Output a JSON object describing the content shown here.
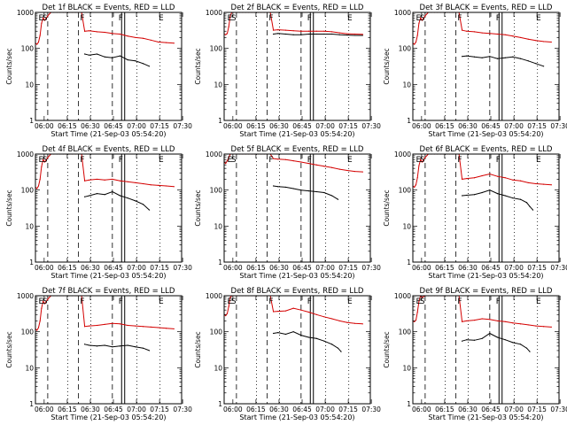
{
  "colors": {
    "events": "#000000",
    "lld": "#d40000",
    "axis": "#000000",
    "background": "#ffffff"
  },
  "shared": {
    "ylabel": "Counts/sec",
    "xlabel": "Start Time (21-Sep-03 05:54:20)",
    "x_ticks": [
      "06:00",
      "06:15",
      "06:30",
      "06:45",
      "07:00",
      "07:15",
      "07:30"
    ],
    "y_ticks": [
      "1",
      "10",
      "100",
      "1000"
    ],
    "markers": [
      "E",
      "S",
      "F",
      "F",
      "E"
    ]
  },
  "chart_data": [
    {
      "type": "line",
      "title": "Det 1f BLACK = Events, RED = LLD",
      "xlabel": "Start Time (21-Sep-03 05:54:20)",
      "ylabel": "Counts/sec",
      "xlim_min": [
        0,
        95
      ],
      "ylim": [
        1,
        1000
      ],
      "yscale": "log",
      "series": [
        {
          "name": "Events",
          "x": [
            32,
            35,
            40,
            45,
            50,
            55,
            60,
            65,
            70,
            74
          ],
          "y": [
            70,
            65,
            70,
            58,
            55,
            62,
            48,
            45,
            38,
            32
          ]
        },
        {
          "name": "LLD",
          "x": [
            0,
            1,
            2,
            3,
            4,
            5,
            6,
            8,
            10,
            12,
            14,
            16,
            18,
            20,
            22,
            24,
            26,
            28,
            30,
            32,
            35,
            40,
            45,
            50,
            55,
            60,
            65,
            70,
            75,
            80,
            85,
            90
          ],
          "y": [
            140,
            130,
            150,
            230,
            500,
            700,
            600,
            800,
            1000,
            1000,
            1000,
            1000,
            1000,
            1000,
            1000,
            1000,
            1000,
            1000,
            1000,
            300,
            310,
            290,
            280,
            260,
            250,
            220,
            200,
            190,
            170,
            150,
            145,
            140
          ]
        }
      ]
    },
    {
      "type": "line",
      "title": "Det 2f BLACK = Events, RED = LLD",
      "xlabel": "Start Time (21-Sep-03 05:54:20)",
      "ylabel": "Counts/sec",
      "xlim_min": [
        0,
        95
      ],
      "ylim": [
        1,
        1000
      ],
      "yscale": "log",
      "series": [
        {
          "name": "Events",
          "x": [
            32,
            35,
            40,
            45,
            50,
            55,
            60,
            65,
            70,
            75,
            80,
            85,
            90
          ],
          "y": [
            250,
            260,
            250,
            240,
            240,
            250,
            250,
            250,
            250,
            240,
            235,
            230,
            230
          ]
        },
        {
          "name": "LLD",
          "x": [
            0,
            1,
            2,
            3,
            4,
            5,
            6,
            8,
            10,
            12,
            14,
            16,
            18,
            20,
            22,
            24,
            26,
            28,
            30,
            32,
            35,
            40,
            45,
            50,
            55,
            60,
            65,
            70,
            75,
            80,
            85,
            90
          ],
          "y": [
            250,
            240,
            260,
            400,
            800,
            1000,
            1000,
            1000,
            1000,
            1000,
            1000,
            1000,
            1000,
            1000,
            1000,
            1000,
            1000,
            1000,
            1000,
            320,
            330,
            320,
            310,
            300,
            300,
            300,
            300,
            290,
            270,
            255,
            250,
            245
          ]
        }
      ]
    },
    {
      "type": "line",
      "title": "Det 3f BLACK = Events, RED = LLD",
      "xlabel": "Start Time (21-Sep-03 05:54:20)",
      "ylabel": "Counts/sec",
      "xlim_min": [
        0,
        95
      ],
      "ylim": [
        1,
        1000
      ],
      "yscale": "log",
      "series": [
        {
          "name": "Events",
          "x": [
            32,
            35,
            40,
            45,
            50,
            55,
            60,
            65,
            70,
            75,
            80,
            85
          ],
          "y": [
            60,
            62,
            58,
            55,
            60,
            52,
            55,
            58,
            52,
            45,
            38,
            32
          ]
        },
        {
          "name": "LLD",
          "x": [
            0,
            1,
            2,
            3,
            4,
            5,
            6,
            8,
            10,
            12,
            14,
            16,
            18,
            20,
            22,
            24,
            26,
            28,
            30,
            32,
            35,
            40,
            45,
            50,
            55,
            60,
            65,
            70,
            75,
            80,
            85,
            90
          ],
          "y": [
            140,
            130,
            150,
            230,
            500,
            700,
            600,
            800,
            1000,
            1000,
            1000,
            1000,
            1000,
            1000,
            1000,
            1000,
            1000,
            1000,
            1000,
            320,
            300,
            290,
            270,
            260,
            250,
            240,
            220,
            200,
            180,
            165,
            155,
            150
          ]
        }
      ]
    },
    {
      "type": "line",
      "title": "Det 4f BLACK = Events, RED = LLD",
      "xlabel": "Start Time (21-Sep-03 05:54:20)",
      "ylabel": "Counts/sec",
      "xlim_min": [
        0,
        95
      ],
      "ylim": [
        1,
        1000
      ],
      "yscale": "log",
      "series": [
        {
          "name": "Events",
          "x": [
            32,
            35,
            40,
            45,
            50,
            55,
            60,
            65,
            70,
            74
          ],
          "y": [
            65,
            70,
            80,
            75,
            90,
            70,
            60,
            50,
            40,
            28
          ]
        },
        {
          "name": "LLD",
          "x": [
            0,
            1,
            2,
            3,
            4,
            5,
            6,
            8,
            10,
            12,
            14,
            16,
            18,
            20,
            22,
            24,
            26,
            28,
            30,
            32,
            35,
            40,
            45,
            50,
            55,
            60,
            65,
            70,
            75,
            80,
            85,
            90
          ],
          "y": [
            120,
            110,
            130,
            200,
            450,
            700,
            600,
            800,
            1000,
            1000,
            1000,
            1000,
            1000,
            1000,
            1000,
            1000,
            1000,
            1000,
            1000,
            180,
            190,
            200,
            190,
            200,
            180,
            170,
            160,
            150,
            140,
            135,
            130,
            125
          ]
        }
      ]
    },
    {
      "type": "line",
      "title": "Det 5f BLACK = Events, RED = LLD",
      "xlabel": "Start Time (21-Sep-03 05:54:20)",
      "ylabel": "Counts/sec",
      "xlim_min": [
        0,
        95
      ],
      "ylim": [
        1,
        1000
      ],
      "yscale": "log",
      "series": [
        {
          "name": "Events",
          "x": [
            32,
            35,
            40,
            45,
            50,
            55,
            60,
            65,
            70,
            74
          ],
          "y": [
            130,
            125,
            120,
            110,
            100,
            95,
            90,
            85,
            70,
            55
          ]
        },
        {
          "name": "LLD",
          "x": [
            0,
            1,
            2,
            3,
            4,
            5,
            6,
            8,
            10,
            12,
            14,
            16,
            18,
            20,
            22,
            24,
            26,
            28,
            30,
            32,
            35,
            40,
            45,
            50,
            55,
            60,
            65,
            70,
            75,
            80,
            85,
            90
          ],
          "y": [
            600,
            550,
            650,
            800,
            1000,
            1000,
            1000,
            1000,
            1000,
            1000,
            1000,
            1000,
            1000,
            1000,
            1000,
            1000,
            1000,
            1000,
            1000,
            750,
            720,
            700,
            650,
            600,
            550,
            500,
            460,
            420,
            380,
            350,
            330,
            320
          ]
        }
      ]
    },
    {
      "type": "line",
      "title": "Det 6f BLACK = Events, RED = LLD",
      "xlabel": "Start Time (21-Sep-03 05:54:20)",
      "ylabel": "Counts/sec",
      "xlim_min": [
        0,
        95
      ],
      "ylim": [
        1,
        1000
      ],
      "yscale": "log",
      "series": [
        {
          "name": "Events",
          "x": [
            32,
            35,
            40,
            45,
            50,
            55,
            60,
            65,
            70,
            74,
            76,
            78
          ],
          "y": [
            70,
            72,
            75,
            85,
            100,
            80,
            70,
            60,
            55,
            45,
            35,
            28
          ]
        },
        {
          "name": "LLD",
          "x": [
            0,
            1,
            2,
            3,
            4,
            5,
            6,
            8,
            10,
            12,
            14,
            16,
            18,
            20,
            22,
            24,
            26,
            28,
            30,
            32,
            35,
            40,
            45,
            50,
            55,
            60,
            65,
            70,
            75,
            80,
            85,
            90
          ],
          "y": [
            130,
            120,
            140,
            220,
            480,
            700,
            600,
            800,
            1000,
            1000,
            1000,
            1000,
            1000,
            1000,
            1000,
            1000,
            1000,
            1000,
            1000,
            200,
            210,
            220,
            250,
            280,
            240,
            220,
            190,
            180,
            160,
            150,
            145,
            140
          ]
        }
      ]
    },
    {
      "type": "line",
      "title": "Det 7f BLACK = Events, RED = LLD",
      "xlabel": "Start Time (21-Sep-03 05:54:20)",
      "ylabel": "Counts/sec",
      "xlim_min": [
        0,
        95
      ],
      "ylim": [
        1,
        1000
      ],
      "yscale": "log",
      "series": [
        {
          "name": "Events",
          "x": [
            32,
            35,
            40,
            45,
            50,
            55,
            60,
            65,
            70,
            74
          ],
          "y": [
            45,
            42,
            40,
            42,
            38,
            40,
            42,
            38,
            35,
            30
          ]
        },
        {
          "name": "LLD",
          "x": [
            0,
            1,
            2,
            3,
            4,
            5,
            6,
            8,
            10,
            12,
            14,
            16,
            18,
            20,
            22,
            24,
            26,
            28,
            30,
            32,
            35,
            40,
            45,
            50,
            55,
            60,
            65,
            70,
            75,
            80,
            85,
            90
          ],
          "y": [
            120,
            110,
            130,
            200,
            450,
            700,
            600,
            800,
            1000,
            1000,
            1000,
            1000,
            1000,
            1000,
            1000,
            1000,
            1000,
            1000,
            1000,
            140,
            145,
            150,
            160,
            170,
            165,
            150,
            145,
            140,
            135,
            130,
            125,
            120
          ]
        }
      ]
    },
    {
      "type": "line",
      "title": "Det 8f BLACK = Events, RED = LLD",
      "xlabel": "Start Time (21-Sep-03 05:54:20)",
      "ylabel": "Counts/sec",
      "xlim_min": [
        0,
        95
      ],
      "ylim": [
        1,
        1000
      ],
      "yscale": "log",
      "series": [
        {
          "name": "Events",
          "x": [
            32,
            35,
            40,
            45,
            50,
            55,
            60,
            65,
            70,
            74,
            76
          ],
          "y": [
            90,
            95,
            85,
            100,
            80,
            70,
            65,
            55,
            45,
            35,
            28
          ]
        },
        {
          "name": "LLD",
          "x": [
            0,
            1,
            2,
            3,
            4,
            5,
            6,
            8,
            10,
            12,
            14,
            16,
            18,
            20,
            22,
            24,
            26,
            28,
            30,
            32,
            35,
            40,
            45,
            50,
            55,
            60,
            65,
            70,
            75,
            80,
            85,
            90
          ],
          "y": [
            300,
            280,
            320,
            500,
            900,
            1000,
            1000,
            1000,
            1000,
            1000,
            1000,
            1000,
            1000,
            1000,
            1000,
            1000,
            1000,
            1000,
            1000,
            360,
            370,
            380,
            450,
            400,
            350,
            300,
            260,
            230,
            200,
            180,
            170,
            165
          ]
        }
      ]
    },
    {
      "type": "line",
      "title": "Det 9f BLACK = Events, RED = LLD",
      "xlabel": "Start Time (21-Sep-03 05:54:20)",
      "ylabel": "Counts/sec",
      "xlim_min": [
        0,
        95
      ],
      "ylim": [
        1,
        1000
      ],
      "yscale": "log",
      "series": [
        {
          "name": "Events",
          "x": [
            32,
            35,
            40,
            45,
            50,
            55,
            60,
            65,
            70,
            74,
            76
          ],
          "y": [
            55,
            60,
            58,
            65,
            90,
            70,
            60,
            50,
            45,
            35,
            28
          ]
        },
        {
          "name": "LLD",
          "x": [
            0,
            1,
            2,
            3,
            4,
            5,
            6,
            8,
            10,
            12,
            14,
            16,
            18,
            20,
            22,
            24,
            26,
            28,
            30,
            32,
            35,
            40,
            45,
            50,
            55,
            60,
            65,
            70,
            75,
            80,
            85,
            90
          ],
          "y": [
            200,
            190,
            210,
            350,
            700,
            1000,
            900,
            1000,
            1000,
            1000,
            1000,
            1000,
            1000,
            1000,
            1000,
            1000,
            1000,
            1000,
            1000,
            190,
            200,
            210,
            230,
            220,
            200,
            190,
            175,
            165,
            155,
            145,
            140,
            135
          ]
        }
      ]
    }
  ]
}
